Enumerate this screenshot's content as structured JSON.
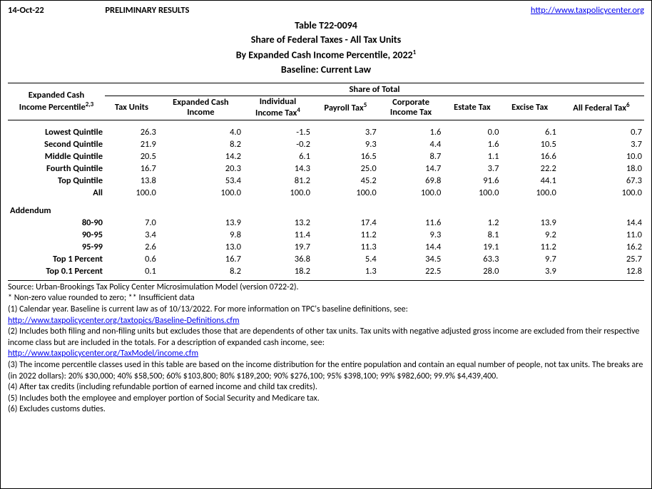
{
  "header": {
    "date": "14-Oct-22",
    "prelim": "PRELIMINARY RESULTS",
    "url": "http://www.taxpolicycenter.org"
  },
  "title": {
    "line1": "Table T22-0094",
    "line2": "Share of Federal Taxes - All Tax Units",
    "line3_a": "By Expanded Cash Income Percentile, 2022",
    "line3_sup": "1",
    "line4": "Baseline: Current Law"
  },
  "table": {
    "share_of_total": "Share of Total",
    "rowhead_a": "Expanded Cash",
    "rowhead_b": "Income Percentile",
    "rowhead_sup": "2,3",
    "columns": [
      {
        "l1": "Tax Units",
        "l2": "",
        "sup": ""
      },
      {
        "l1": "Expanded Cash",
        "l2": "Income",
        "sup": ""
      },
      {
        "l1": "Individual",
        "l2": "Income Tax",
        "sup": "4"
      },
      {
        "l1": "Payroll Tax",
        "l2": "",
        "sup": "5"
      },
      {
        "l1": "Corporate",
        "l2": "Income Tax",
        "sup": ""
      },
      {
        "l1": "Estate Tax",
        "l2": "",
        "sup": ""
      },
      {
        "l1": "Excise Tax",
        "l2": "",
        "sup": ""
      },
      {
        "l1": "All Federal Tax",
        "l2": "",
        "sup": "6"
      }
    ],
    "main_rows": [
      {
        "label": "Lowest Quintile",
        "v": [
          "26.3",
          "4.0",
          "-1.5",
          "3.7",
          "1.6",
          "0.0",
          "6.1",
          "0.7"
        ]
      },
      {
        "label": "Second Quintile",
        "v": [
          "21.9",
          "8.2",
          "-0.2",
          "9.3",
          "4.4",
          "1.6",
          "10.5",
          "3.7"
        ]
      },
      {
        "label": "Middle Quintile",
        "v": [
          "20.5",
          "14.2",
          "6.1",
          "16.5",
          "8.7",
          "1.1",
          "16.6",
          "10.0"
        ]
      },
      {
        "label": "Fourth Quintile",
        "v": [
          "16.7",
          "20.3",
          "14.3",
          "25.0",
          "14.7",
          "3.7",
          "22.2",
          "18.0"
        ]
      },
      {
        "label": "Top Quintile",
        "v": [
          "13.8",
          "53.4",
          "81.2",
          "45.2",
          "69.8",
          "91.6",
          "44.1",
          "67.3"
        ]
      },
      {
        "label": "All",
        "v": [
          "100.0",
          "100.0",
          "100.0",
          "100.0",
          "100.0",
          "100.0",
          "100.0",
          "100.0"
        ]
      }
    ],
    "addendum_label": "Addendum",
    "addendum_rows": [
      {
        "label": "80-90",
        "v": [
          "7.0",
          "13.9",
          "13.2",
          "17.4",
          "11.6",
          "1.2",
          "13.9",
          "14.4"
        ]
      },
      {
        "label": "90-95",
        "v": [
          "3.4",
          "9.8",
          "11.4",
          "11.2",
          "9.3",
          "8.1",
          "9.2",
          "11.0"
        ]
      },
      {
        "label": "95-99",
        "v": [
          "2.6",
          "13.0",
          "19.7",
          "11.3",
          "14.4",
          "19.1",
          "11.2",
          "16.2"
        ]
      },
      {
        "label": "Top 1 Percent",
        "v": [
          "0.6",
          "16.7",
          "36.8",
          "5.4",
          "34.5",
          "63.3",
          "9.7",
          "25.7"
        ]
      },
      {
        "label": "Top 0.1 Percent",
        "v": [
          "0.1",
          "8.2",
          "18.2",
          "1.3",
          "22.5",
          "28.0",
          "3.9",
          "12.8"
        ]
      }
    ]
  },
  "footnotes": {
    "source": "Source: Urban-Brookings Tax Policy Center Microsimulation Model (version 0722-2).",
    "star": "* Non-zero value rounded to zero; ** Insufficient data",
    "n1": "(1) Calendar year. Baseline is current law as of 10/13/2022. For more information on TPC's baseline definitions, see:",
    "link1": "http://www.taxpolicycenter.org/taxtopics/Baseline-Definitions.cfm",
    "n2": "(2) Includes both filing and non-filing units but excludes those that are dependents of other tax units. Tax units with negative adjusted gross income are excluded from their respective income class but are included in the totals. For a description of expanded cash income, see:",
    "link2": "http://www.taxpolicycenter.org/TaxModel/income.cfm",
    "n3": "(3) The income percentile classes used in this table are based on the income distribution for the entire population and contain an equal number of people, not tax units. The breaks are (in 2022 dollars): 20% $30,000; 40% $58,500; 60% $103,800; 80% $189,200; 90% $276,100; 95% $398,100; 99% $982,600; 99.9% $4,439,400.",
    "n4": "(4) After tax credits (including refundable portion of earned income and child tax credits).",
    "n5": "(5) Includes both the employee and employer portion of Social Security and Medicare tax.",
    "n6": "(6) Excludes customs duties."
  }
}
